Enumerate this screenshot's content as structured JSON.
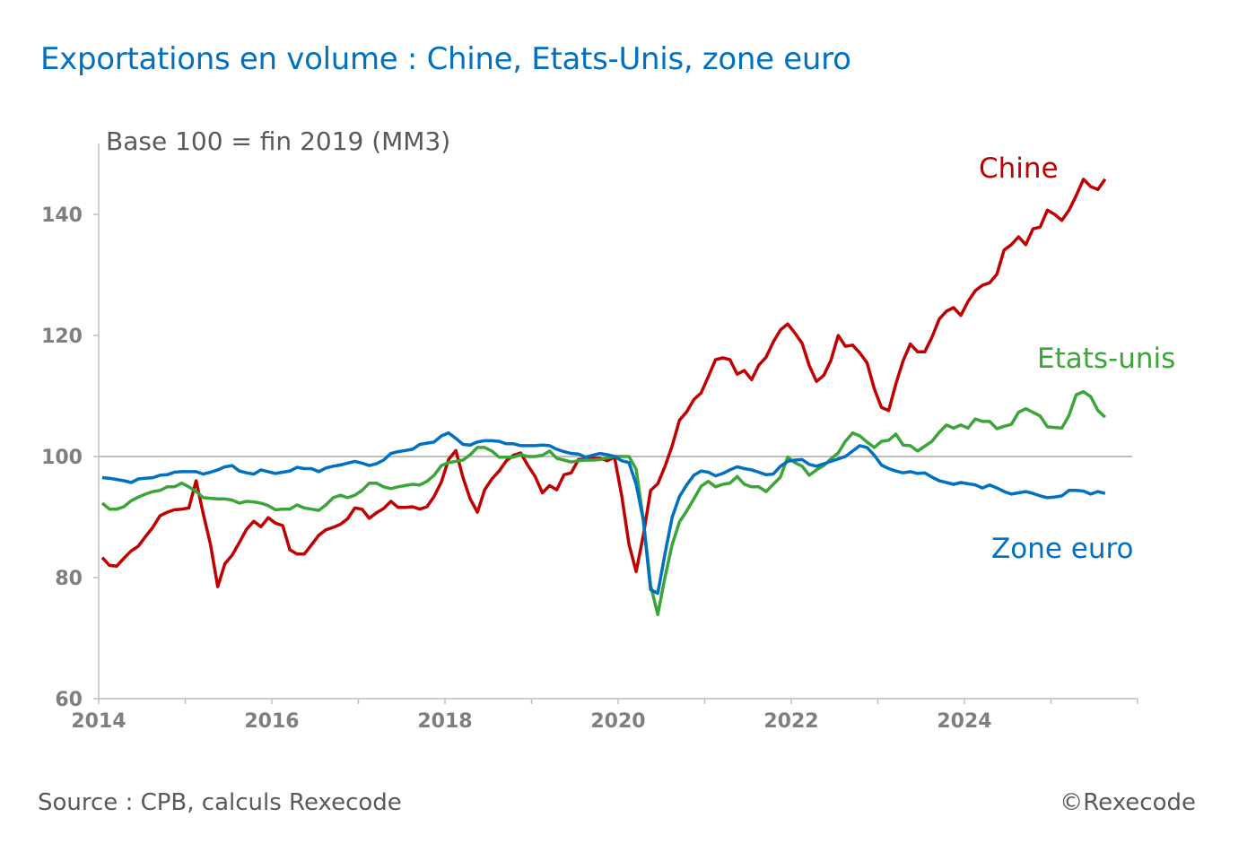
{
  "chart_data": {
    "type": "line",
    "title": "Exportations en volume : Chine, Etats-Unis, zone euro",
    "subtitle": "Base 100 = fin 2019 (MM3)",
    "xlabel": "",
    "ylabel": "",
    "xlim": [
      2014,
      2026
    ],
    "ylim": [
      60,
      150
    ],
    "x_ticks": [
      "2014",
      "2016",
      "2018",
      "2020",
      "2022",
      "2024"
    ],
    "y_ticks": [
      "60",
      "80",
      "100",
      "120",
      "140"
    ],
    "reference_line": 100,
    "grid": false,
    "legend": "inline labels at line ends",
    "x": [
      "2014-01",
      "2014-02",
      "2014-03",
      "2014-04",
      "2014-05",
      "2014-06",
      "2014-07",
      "2014-08",
      "2014-09",
      "2014-10",
      "2014-11",
      "2014-12",
      "2015-01",
      "2015-02",
      "2015-03",
      "2015-04",
      "2015-05",
      "2015-06",
      "2015-07",
      "2015-08",
      "2015-09",
      "2015-10",
      "2015-11",
      "2015-12",
      "2016-01",
      "2016-02",
      "2016-03",
      "2016-04",
      "2016-05",
      "2016-06",
      "2016-07",
      "2016-08",
      "2016-09",
      "2016-10",
      "2016-11",
      "2016-12",
      "2017-01",
      "2017-02",
      "2017-03",
      "2017-04",
      "2017-05",
      "2017-06",
      "2017-07",
      "2017-08",
      "2017-09",
      "2017-10",
      "2017-11",
      "2017-12",
      "2018-01",
      "2018-02",
      "2018-03",
      "2018-04",
      "2018-05",
      "2018-06",
      "2018-07",
      "2018-08",
      "2018-09",
      "2018-10",
      "2018-11",
      "2018-12",
      "2019-01",
      "2019-02",
      "2019-03",
      "2019-04",
      "2019-05",
      "2019-06",
      "2019-07",
      "2019-08",
      "2019-09",
      "2019-10",
      "2019-11",
      "2019-12",
      "2020-01",
      "2020-02",
      "2020-03",
      "2020-04",
      "2020-05",
      "2020-06",
      "2020-07",
      "2020-08",
      "2020-09",
      "2020-10",
      "2020-11",
      "2020-12",
      "2021-01",
      "2021-02",
      "2021-03",
      "2021-04",
      "2021-05",
      "2021-06",
      "2021-07",
      "2021-08",
      "2021-09",
      "2021-10",
      "2021-11",
      "2021-12",
      "2022-01",
      "2022-02",
      "2022-03",
      "2022-04",
      "2022-05",
      "2022-06",
      "2022-07",
      "2022-08",
      "2022-09",
      "2022-10",
      "2022-11",
      "2022-12",
      "2023-01",
      "2023-02",
      "2023-03",
      "2023-04",
      "2023-05",
      "2023-06",
      "2023-07",
      "2023-08",
      "2023-09",
      "2023-10",
      "2023-11",
      "2023-12",
      "2024-01",
      "2024-02",
      "2024-03",
      "2024-04",
      "2024-05",
      "2024-06",
      "2024-07",
      "2024-08",
      "2024-09",
      "2024-10",
      "2024-11",
      "2024-12",
      "2025-01",
      "2025-02",
      "2025-03",
      "2025-04",
      "2025-05",
      "2025-06",
      "2025-07",
      "2025-08"
    ],
    "series": [
      {
        "name": "Chine",
        "color": "#C00000",
        "values": [
          83.3,
          82.0,
          81.9,
          83.2,
          84.4,
          85.2,
          86.8,
          88.3,
          90.2,
          90.8,
          91.2,
          91.3,
          91.5,
          96.0,
          90.5,
          85.5,
          78.5,
          82.3,
          83.7,
          85.8,
          88.0,
          89.3,
          88.4,
          89.9,
          89.0,
          88.6,
          84.6,
          83.9,
          83.9,
          85.4,
          87.0,
          87.9,
          88.3,
          88.8,
          89.7,
          91.5,
          91.3,
          89.8,
          90.7,
          91.4,
          92.6,
          91.6,
          91.6,
          91.7,
          91.3,
          91.7,
          93.4,
          95.8,
          99.5,
          101.0,
          96.5,
          93.0,
          90.8,
          94.5,
          96.3,
          97.6,
          99.3,
          100.2,
          100.6,
          98.5,
          96.7,
          94.0,
          95.2,
          94.5,
          97.0,
          97.3,
          99.5,
          99.6,
          99.7,
          99.7,
          99.3,
          99.9,
          93.5,
          85.5,
          81.0,
          87.0,
          94.4,
          95.5,
          98.4,
          101.8,
          106.0,
          107.4,
          109.4,
          110.5,
          113.2,
          116.0,
          116.3,
          116.0,
          113.6,
          114.2,
          112.7,
          115.1,
          116.4,
          118.9,
          120.9,
          121.9,
          120.4,
          118.7,
          115.0,
          112.4,
          113.4,
          115.9,
          120.0,
          118.2,
          118.4,
          117.1,
          115.5,
          111.2,
          108.1,
          107.6,
          112.0,
          115.8,
          118.6,
          117.3,
          117.3,
          119.7,
          122.7,
          124.0,
          124.6,
          123.3,
          125.6,
          127.4,
          128.3,
          128.7,
          130.1,
          134.1,
          135.0,
          136.3,
          135.0,
          137.6,
          137.9,
          140.7,
          140.0,
          139.0,
          140.7,
          143.1,
          145.8,
          144.6,
          144.1,
          145.8
        ]
      },
      {
        "name": "Etats-unis",
        "color": "#3CA539",
        "values": [
          92.3,
          91.3,
          91.3,
          91.7,
          92.7,
          93.3,
          93.8,
          94.2,
          94.4,
          95.0,
          95.0,
          95.6,
          95.0,
          94.2,
          93.2,
          93.1,
          93.0,
          93.0,
          92.8,
          92.3,
          92.6,
          92.5,
          92.3,
          91.9,
          91.2,
          91.3,
          91.3,
          92.0,
          91.5,
          91.3,
          91.1,
          92.0,
          93.2,
          93.6,
          93.2,
          93.6,
          94.4,
          95.6,
          95.6,
          95.0,
          94.7,
          95.0,
          95.2,
          95.4,
          95.3,
          95.9,
          96.9,
          98.5,
          99.0,
          99.2,
          99.4,
          100.3,
          101.5,
          101.5,
          100.9,
          99.9,
          99.9,
          99.9,
          100.3,
          100.0,
          100.0,
          100.2,
          100.9,
          99.7,
          99.4,
          99.1,
          99.3,
          99.4,
          99.4,
          99.5,
          99.8,
          100.0,
          100.0,
          100.0,
          97.9,
          89.5,
          78.7,
          73.9,
          80.1,
          85.5,
          89.2,
          91.0,
          93.0,
          95.1,
          95.9,
          95.0,
          95.4,
          95.6,
          96.7,
          95.4,
          95.0,
          95.0,
          94.2,
          95.4,
          96.6,
          99.9,
          99.0,
          98.4,
          96.9,
          97.8,
          98.5,
          99.6,
          100.6,
          102.5,
          103.9,
          103.4,
          102.4,
          101.5,
          102.5,
          102.7,
          103.7,
          101.9,
          101.8,
          100.9,
          101.7,
          102.5,
          104.0,
          105.2,
          104.7,
          105.2,
          104.7,
          106.2,
          105.8,
          105.8,
          104.6,
          105.0,
          105.3,
          107.3,
          107.9,
          107.3,
          106.7,
          104.9,
          104.8,
          104.7,
          106.8,
          110.2,
          110.7,
          109.9,
          107.6,
          106.5
        ]
      },
      {
        "name": "Zone euro",
        "color": "#0070C0",
        "values": [
          96.5,
          96.4,
          96.2,
          96.0,
          95.7,
          96.3,
          96.4,
          96.5,
          96.9,
          97.0,
          97.4,
          97.5,
          97.5,
          97.5,
          97.1,
          97.4,
          97.8,
          98.3,
          98.5,
          97.6,
          97.3,
          97.1,
          97.8,
          97.5,
          97.2,
          97.4,
          97.6,
          98.2,
          98.0,
          98.0,
          97.5,
          98.1,
          98.4,
          98.6,
          98.9,
          99.2,
          98.9,
          98.5,
          98.8,
          99.4,
          100.5,
          100.8,
          101.0,
          101.2,
          102.0,
          102.2,
          102.4,
          103.4,
          103.9,
          103.0,
          102.0,
          101.9,
          102.4,
          102.6,
          102.6,
          102.5,
          102.1,
          102.1,
          101.8,
          101.8,
          101.8,
          101.9,
          101.8,
          101.2,
          100.8,
          100.5,
          100.4,
          99.9,
          100.2,
          100.5,
          100.3,
          100.0,
          99.3,
          99.0,
          95.4,
          89.5,
          78.0,
          77.4,
          84.0,
          90.0,
          93.4,
          95.3,
          96.9,
          97.6,
          97.4,
          96.8,
          97.2,
          97.8,
          98.3,
          98.0,
          97.8,
          97.4,
          97.0,
          97.1,
          98.4,
          99.2,
          99.4,
          99.5,
          98.7,
          98.4,
          98.8,
          99.2,
          99.6,
          100.0,
          100.9,
          101.8,
          101.5,
          100.2,
          98.6,
          98.0,
          97.6,
          97.3,
          97.5,
          97.2,
          97.3,
          96.6,
          96.0,
          95.7,
          95.4,
          95.7,
          95.5,
          95.3,
          94.8,
          95.3,
          94.8,
          94.2,
          93.8,
          94.0,
          94.2,
          93.9,
          93.5,
          93.2,
          93.3,
          93.5,
          94.4,
          94.4,
          94.3,
          93.8,
          94.2,
          93.9
        ]
      }
    ]
  },
  "footer": {
    "source": "Source : CPB, calculs Rexecode",
    "copyright": "©Rexecode"
  }
}
